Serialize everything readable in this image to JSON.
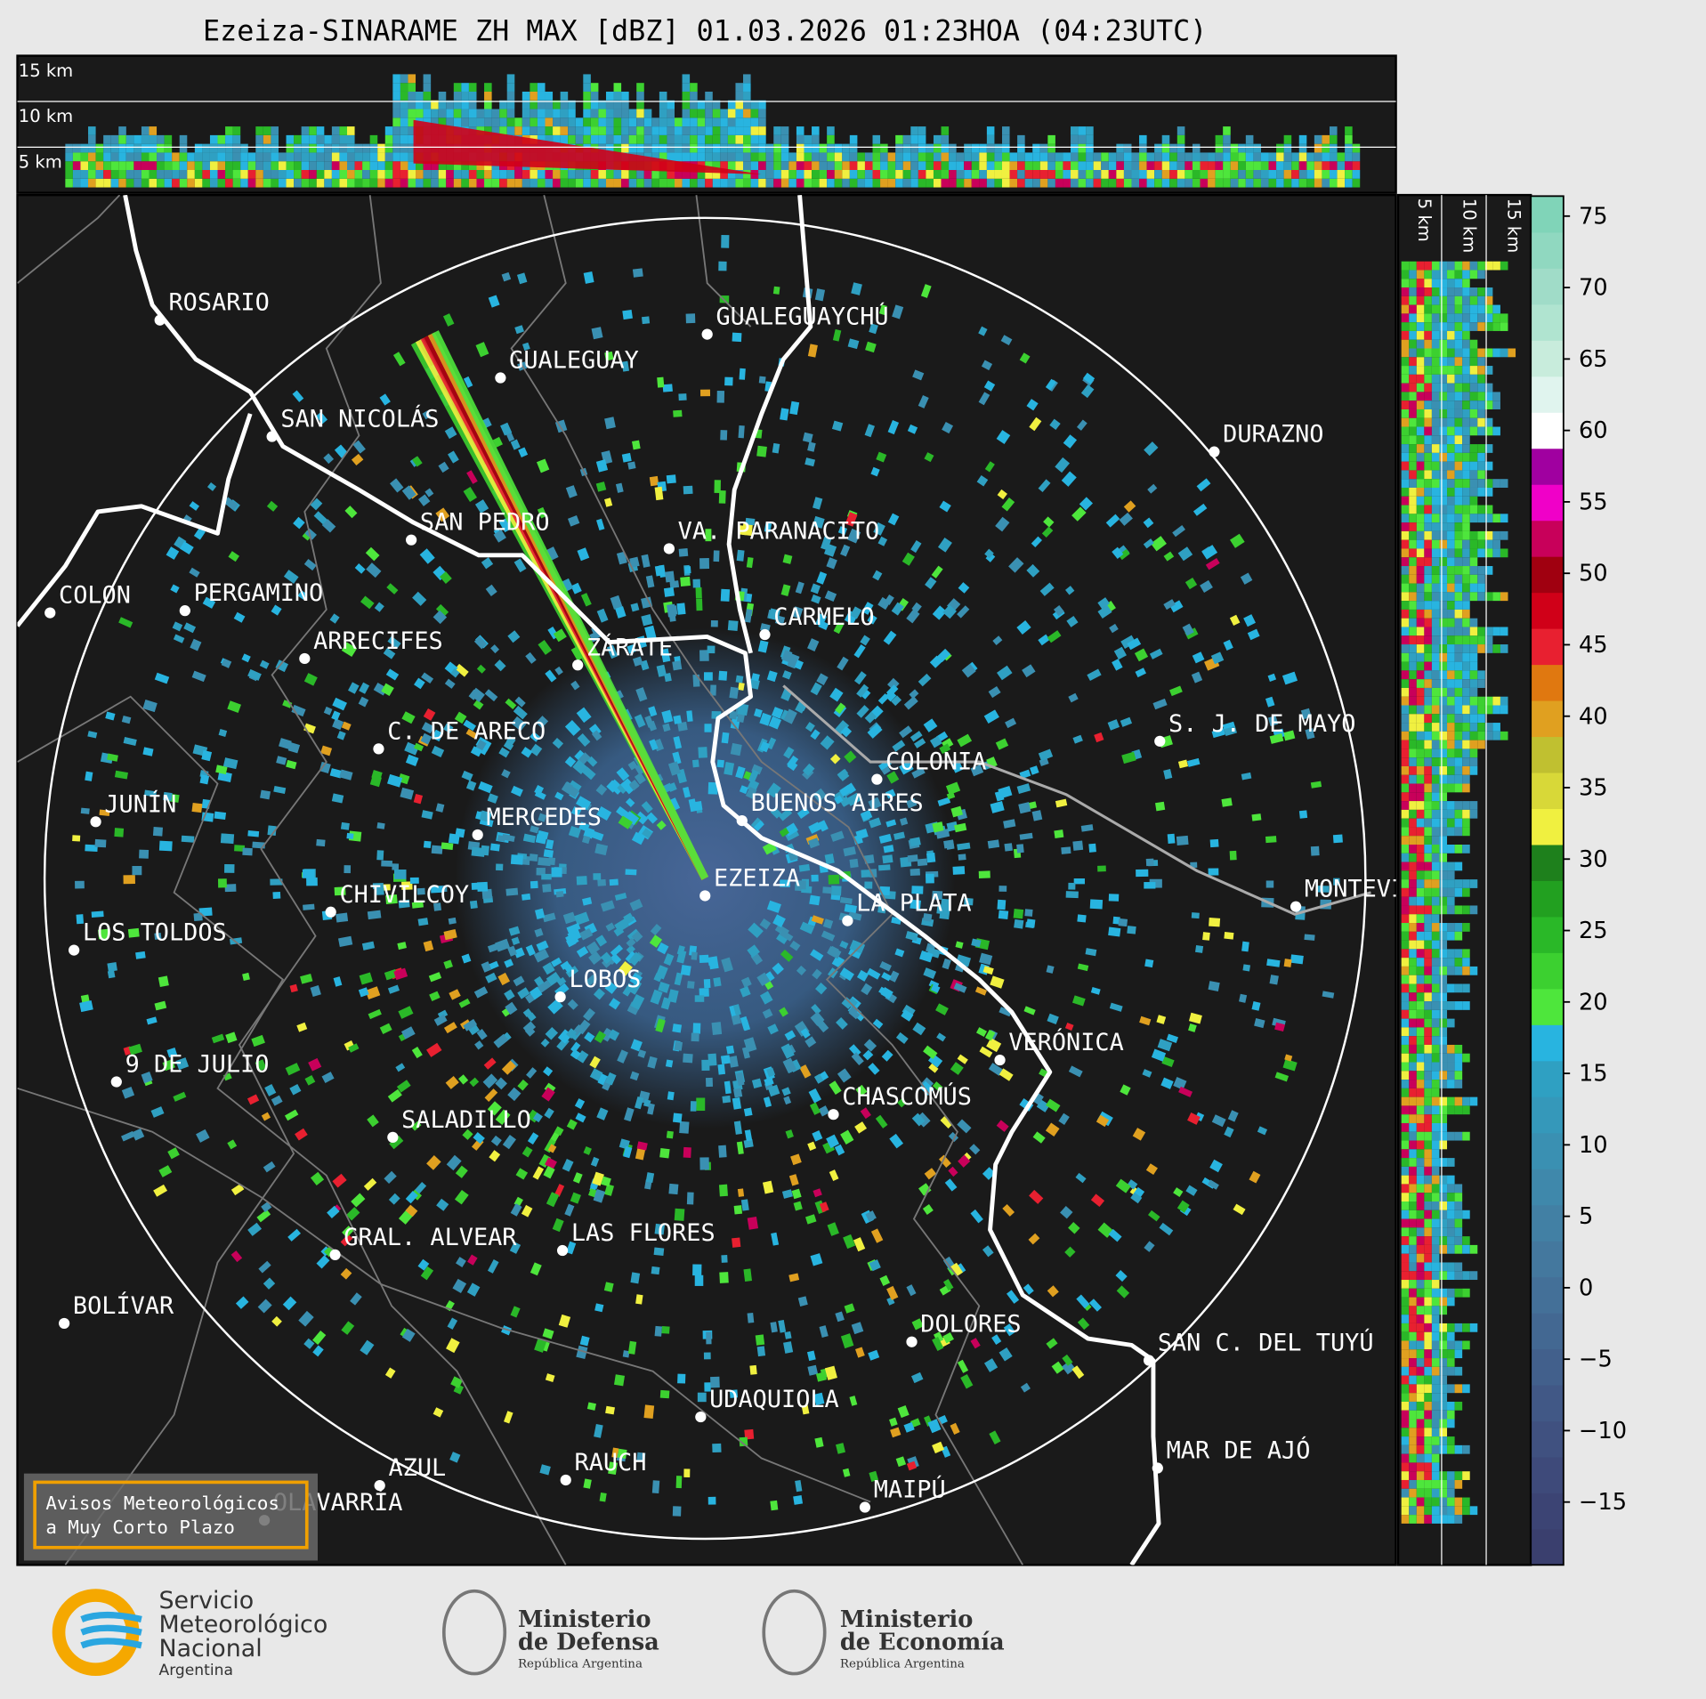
{
  "title": "Ezeiza-SINARAME ZH MAX [dBZ] 01.03.2026 01:23HOA (04:23UTC)",
  "top_section": {
    "labels": [
      "15 km",
      "10 km",
      "5 km"
    ]
  },
  "side_section": {
    "labels": [
      "5 km",
      "10 km",
      "15 km"
    ]
  },
  "cities": [
    "ROSARIO",
    "GUALEGUAYCHÚ",
    "GUALEGUAY",
    "SAN NICOLÁS",
    "DURAZNO",
    "SAN PEDRO",
    "VA. PARANACITO",
    "COLON",
    "PERGAMINO",
    "CARMELO",
    "ARRECIFES",
    "ZÁRATE",
    "C. DE ARECO",
    "S. J. DE MAYO",
    "COLONIA",
    "JUNÍN",
    "BUENOS AIRES",
    "MERCEDES",
    "EZEIZA",
    "CHIVILCOY",
    "MONTEVIDEO",
    "LA PLATA",
    "LOS TOLDOS",
    "LOBOS",
    "VERÓNICA",
    "9 DE JULIO",
    "CHASCOMÚS",
    "SALADILLO",
    "GRAL. ALVEAR",
    "LAS FLORES",
    "BOLÍVAR",
    "DOLORES",
    "SAN C. DEL TUYÚ",
    "UDAQUIOLA",
    "MAR DE AJÓ",
    "AZUL",
    "RAUCH",
    "OLAVARRÍA",
    "MAIPÚ"
  ],
  "warning_box": {
    "lines": [
      "Avisos Meteorológicos",
      "a Muy Corto Plazo"
    ]
  },
  "colorbar": {
    "lim": [
      -19.4,
      76.4
    ],
    "ticks": [
      75,
      70,
      65,
      60,
      55,
      50,
      45,
      40,
      35,
      30,
      25,
      20,
      15,
      10,
      5,
      0,
      {
        "value": -5,
        "label": "−5"
      },
      {
        "value": -10,
        "label": "−10"
      },
      {
        "value": -15,
        "label": "−15"
      }
    ],
    "colors": [
      "#3a3f6e",
      "#3c4474",
      "#3e4a7a",
      "#405180",
      "#415886",
      "#42608c",
      "#436892",
      "#447098",
      "#44789e",
      "#4280a4",
      "#3f88ab",
      "#3a90b2",
      "#3598ba",
      "#2fa0c2",
      "#28b4e0",
      "#4ee63c",
      "#3cd030",
      "#2ab828",
      "#22a020",
      "#1e801c",
      "#f0f040",
      "#d8d838",
      "#c0c030",
      "#e0a020",
      "#e07810",
      "#e82030",
      "#d00018",
      "#a00010",
      "#c8005a",
      "#f000c8",
      "#a000a0",
      "#ffffff",
      "#e0f4ee",
      "#c8ecdc",
      "#b0e4d0",
      "#a0dcc8",
      "#90d8c0",
      "#80d4b8"
    ]
  },
  "logos": {
    "smn": [
      "Servicio",
      "Meteorológico",
      "Nacional",
      "Argentina"
    ],
    "defensa": [
      "Ministerio",
      "de Defensa",
      "República Argentina"
    ],
    "economia": [
      "Ministerio",
      "de Economía",
      "República Argentina"
    ]
  }
}
